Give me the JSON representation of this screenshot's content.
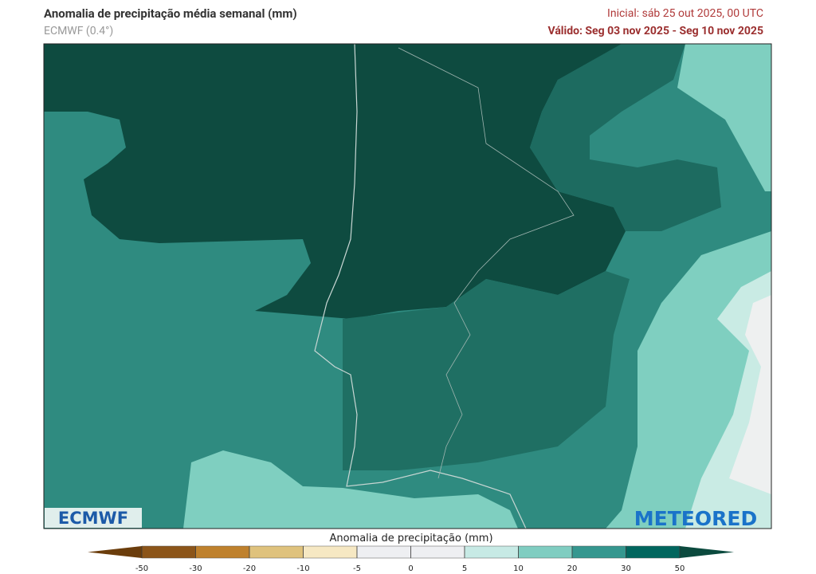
{
  "header": {
    "title": "Anomalia de precipitação média semanal (mm)",
    "model": "ECMWF (0.4°)",
    "initial": "Inicial:  sáb 25 out 2025, 00 UTC",
    "valid": "Válido: Seg 03 nov 2025 - Seg 10 nov 2025"
  },
  "logos": {
    "left": "ECMWF",
    "right": "METEORED"
  },
  "legend": {
    "title": "Anomalia de precipitação (mm)",
    "ticks": [
      -50,
      -30,
      -20,
      -10,
      -5,
      0,
      5,
      10,
      20,
      30,
      50
    ],
    "colors": [
      "#6b3d0c",
      "#8c5519",
      "#bf812d",
      "#dfc27d",
      "#f6e8c3",
      "#eeeff2",
      "#eeeff2",
      "#c7eae5",
      "#80cdc1",
      "#35978f",
      "#01665e",
      "#0b4a3e"
    ]
  }
}
